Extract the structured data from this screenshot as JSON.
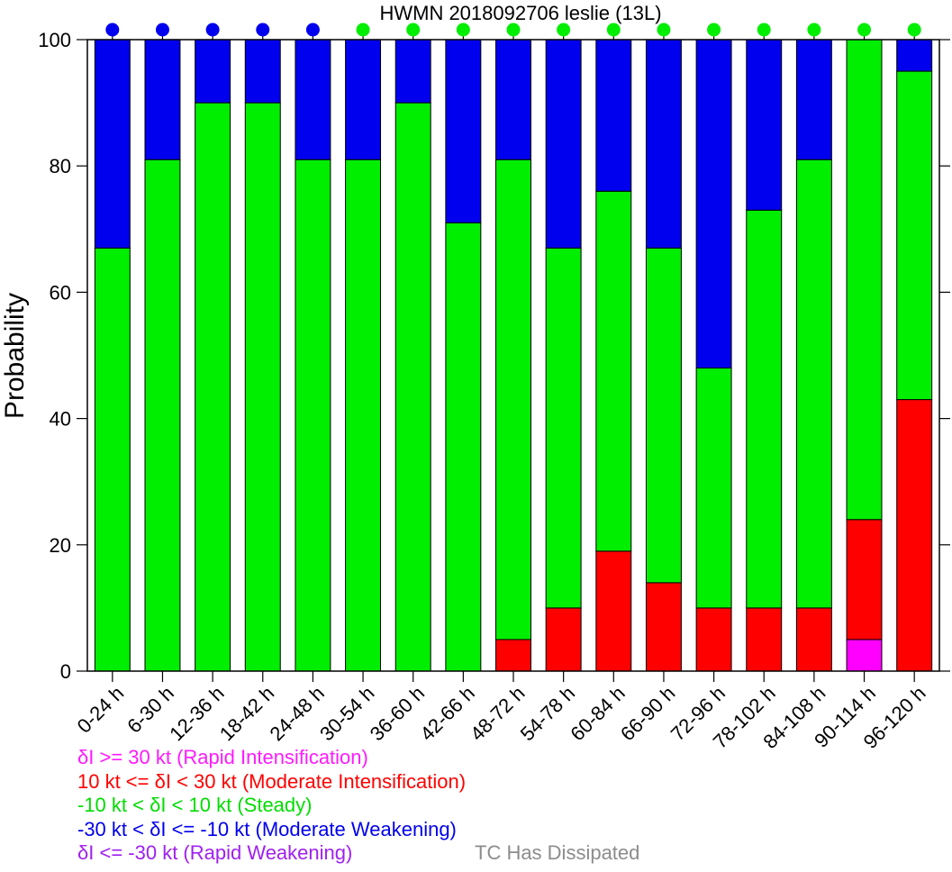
{
  "chart_data": {
    "type": "bar",
    "stacked": true,
    "title": "HWMN 2018092706 leslie (13L)",
    "ylabel": "Probability",
    "xlabel": "",
    "ylim": [
      0,
      100
    ],
    "yticks": [
      "0",
      "20",
      "40",
      "60",
      "80",
      "100"
    ],
    "categories": [
      "0-24 h",
      "6-30 h",
      "12-36 h",
      "18-42 h",
      "24-48 h",
      "30-54 h",
      "36-60 h",
      "42-66 h",
      "48-72 h",
      "54-78 h",
      "60-84 h",
      "66-90 h",
      "72-96 h",
      "78-102 h",
      "84-108 h",
      "90-114 h",
      "96-120 h"
    ],
    "series": [
      {
        "key": "rapid_intensification",
        "color": "#ff00ff",
        "values": [
          0,
          0,
          0,
          0,
          0,
          0,
          0,
          0,
          0,
          0,
          0,
          0,
          0,
          0,
          0,
          5,
          0
        ]
      },
      {
        "key": "moderate_intensification",
        "color": "#ff0000",
        "values": [
          0,
          0,
          0,
          0,
          0,
          0,
          0,
          0,
          5,
          10,
          19,
          14,
          10,
          10,
          10,
          19,
          43
        ]
      },
      {
        "key": "steady",
        "color": "#00ee00",
        "values": [
          67,
          81,
          90,
          90,
          81,
          81,
          90,
          71,
          76,
          57,
          57,
          53,
          38,
          63,
          71,
          76,
          52
        ]
      },
      {
        "key": "moderate_weakening",
        "color": "#0000ee",
        "values": [
          33,
          19,
          10,
          10,
          19,
          19,
          10,
          29,
          19,
          33,
          24,
          33,
          52,
          27,
          19,
          0,
          5
        ]
      },
      {
        "key": "rapid_weakening",
        "color": "#a020f0",
        "values": [
          0,
          0,
          0,
          0,
          0,
          0,
          0,
          0,
          0,
          0,
          0,
          0,
          0,
          0,
          0,
          0,
          0
        ]
      }
    ],
    "top_markers": [
      "#0000ee",
      "#0000ee",
      "#0000ee",
      "#0000ee",
      "#0000ee",
      "#00ee00",
      "#00ee00",
      "#00ee00",
      "#00ee00",
      "#00ee00",
      "#00ee00",
      "#00ee00",
      "#00ee00",
      "#00ee00",
      "#00ee00",
      "#00ee00",
      "#00ee00"
    ],
    "grid": false
  },
  "legend": {
    "ri": "δI >= 30 kt (Rapid Intensification)",
    "mi": "10 kt <= δI < 30 kt (Moderate Intensification)",
    "st": "-10 kt < δI < 10 kt (Steady)",
    "mw": "-30 kt < δI <= -10 kt (Moderate Weakening)",
    "rw": "δI <= -30 kt (Rapid Weakening)",
    "tcd": "TC Has Dissipated"
  }
}
